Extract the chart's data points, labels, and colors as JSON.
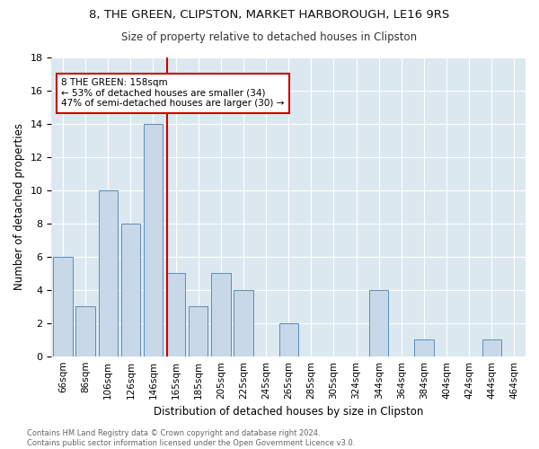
{
  "title1": "8, THE GREEN, CLIPSTON, MARKET HARBOROUGH, LE16 9RS",
  "title2": "Size of property relative to detached houses in Clipston",
  "xlabel": "Distribution of detached houses by size in Clipston",
  "ylabel": "Number of detached properties",
  "bar_labels": [
    "66sqm",
    "86sqm",
    "106sqm",
    "126sqm",
    "146sqm",
    "165sqm",
    "185sqm",
    "205sqm",
    "225sqm",
    "245sqm",
    "265sqm",
    "285sqm",
    "305sqm",
    "324sqm",
    "344sqm",
    "364sqm",
    "384sqm",
    "404sqm",
    "424sqm",
    "444sqm",
    "464sqm"
  ],
  "bar_values": [
    6,
    3,
    10,
    8,
    14,
    5,
    3,
    5,
    4,
    0,
    2,
    0,
    0,
    0,
    4,
    0,
    1,
    0,
    0,
    1,
    0
  ],
  "bar_color": "#c8d8e8",
  "bar_edge_color": "#5b8db8",
  "vline_x": 4,
  "vline_color": "#cc0000",
  "annotation_text": "8 THE GREEN: 158sqm\n← 53% of detached houses are smaller (34)\n47% of semi-detached houses are larger (30) →",
  "annotation_box_color": "#ffffff",
  "annotation_box_edge": "#cc0000",
  "ylim": [
    0,
    18
  ],
  "yticks": [
    0,
    2,
    4,
    6,
    8,
    10,
    12,
    14,
    16,
    18
  ],
  "background_color": "#dce8f0",
  "footer_text": "Contains HM Land Registry data © Crown copyright and database right 2024.\nContains public sector information licensed under the Open Government Licence v3.0."
}
